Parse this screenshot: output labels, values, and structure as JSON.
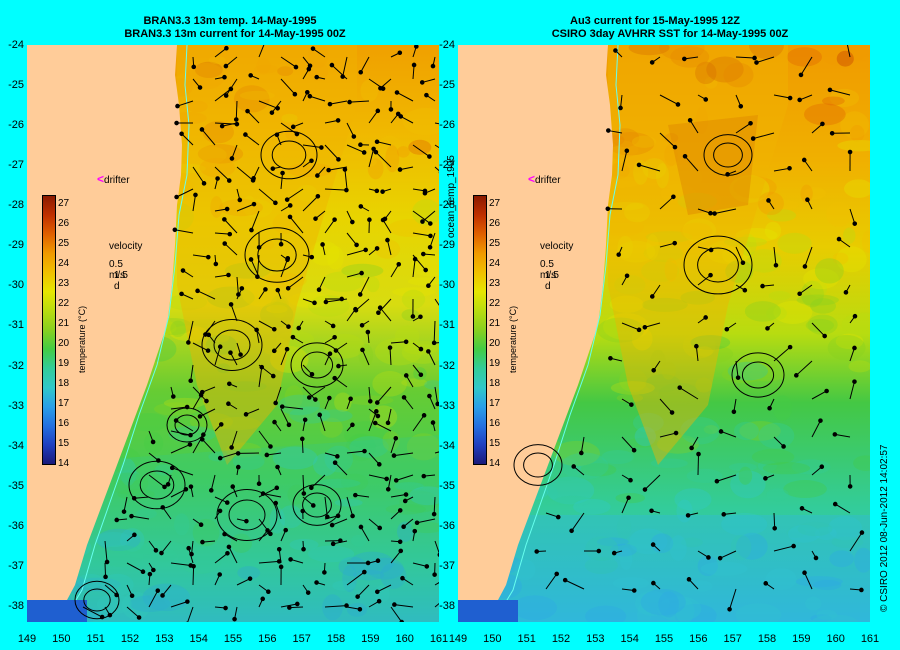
{
  "left_panel": {
    "title_line1": "BRAN3.3 13m temp. 14-May-1995",
    "title_line2": "BRAN3.3 13m current for 14-May-1995 00Z"
  },
  "right_panel": {
    "title_line1": "Au3 current for 15-May-1995 12Z",
    "title_line2": "CSIRO 3day AVHRR SST for 14-May-1995 00Z"
  },
  "side_label": "ocean_temp_1995",
  "copyright": "© CSIRO 2012  08-Jun-2012 14:02:57",
  "legend": {
    "drifter": "drifter",
    "velocity_title": "velocity",
    "velocity_scale": "0.5 m/s",
    "velocity_time": "1.5 d",
    "colorbar_title": "temperature (°C)",
    "colorbar_ticks": [
      "27",
      "26",
      "25",
      "24",
      "23",
      "22",
      "21",
      "20",
      "19",
      "18",
      "17",
      "16",
      "15",
      "14"
    ]
  },
  "axes": {
    "y_ticks": [
      "-24",
      "-25",
      "-26",
      "-27",
      "-28",
      "-29",
      "-30",
      "-31",
      "-32",
      "-33",
      "-34",
      "-35",
      "-36",
      "-37",
      "-38"
    ],
    "x_ticks_left": [
      "149",
      "150",
      "151",
      "152",
      "153",
      "154",
      "155",
      "156",
      "157",
      "158",
      "159",
      "160",
      "161"
    ],
    "x_ticks_right": [
      "149",
      "150",
      "151",
      "152",
      "153",
      "154",
      "155",
      "156",
      "157",
      "158",
      "159",
      "160",
      "161"
    ]
  },
  "colors": {
    "background": "#00ffff",
    "land": "#ffcc99",
    "drifter_marker": "#ff00ff",
    "coastline_contour": "#66ffee"
  },
  "chart_data": {
    "type": "heatmap",
    "map": "East Australian Current sea surface temperature with velocity vectors",
    "x_range": [
      149,
      161
    ],
    "y_range": [
      -38.4,
      -24
    ],
    "colorbar_range": [
      14,
      27
    ],
    "colorbar_colors": [
      "#1a1a7a",
      "#1f3fc0",
      "#2470e0",
      "#2aa0e8",
      "#30c8c8",
      "#33cc99",
      "#44cc44",
      "#88d020",
      "#b8dc10",
      "#e6e600",
      "#f0c000",
      "#f09a00",
      "#e06000",
      "#c03000",
      "#8b1a00"
    ]
  }
}
